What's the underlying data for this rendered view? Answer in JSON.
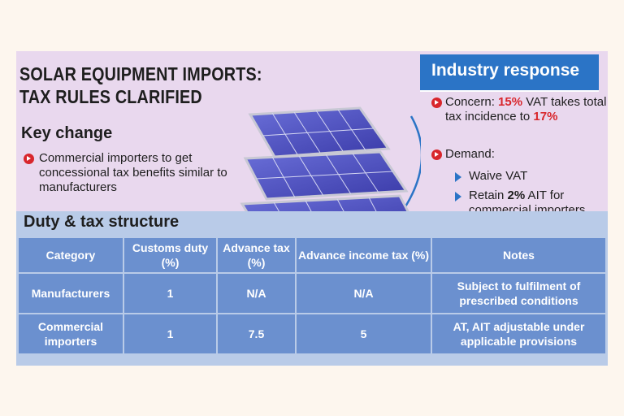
{
  "headline": {
    "line1": "SOLAR EQUIPMENT IMPORTS:",
    "line2": "TAX RULES CLARIFIED"
  },
  "key_change": {
    "title": "Key change",
    "text": "Commercial importers to get concessional tax benefits similar to manufacturers"
  },
  "industry_response": {
    "title": "Industry response",
    "concern": {
      "prefix": "Concern: ",
      "vat": "15%",
      "middle": " VAT takes total tax incidence to ",
      "total": "17%"
    },
    "demand_label": "Demand:",
    "demands": [
      {
        "text": "Waive VAT"
      },
      {
        "prefix": "Retain ",
        "value": "2%",
        "suffix": " AIT for commercial importers"
      }
    ]
  },
  "table": {
    "title": "Duty & tax structure",
    "headers": [
      "Category",
      "Customs duty (%)",
      "Advance tax (%)",
      "Advance income tax (%)",
      "Notes"
    ],
    "rows": [
      [
        "Manufacturers",
        "1",
        "N/A",
        "N/A",
        "Subject to fulfilment of prescribed conditions"
      ],
      [
        "Commercial importers",
        "1",
        "7.5",
        "5",
        "AT, AIT adjustable under applicable provisions"
      ]
    ]
  },
  "colors": {
    "accent_blue": "#2b74c6",
    "highlight_red": "#d8262c",
    "table_cell": "#6b90cf",
    "background": "#e9d8ee"
  },
  "icons": [
    "bullet-arrow-icon",
    "triangle-arrow-icon",
    "solar-panel-illustration"
  ]
}
